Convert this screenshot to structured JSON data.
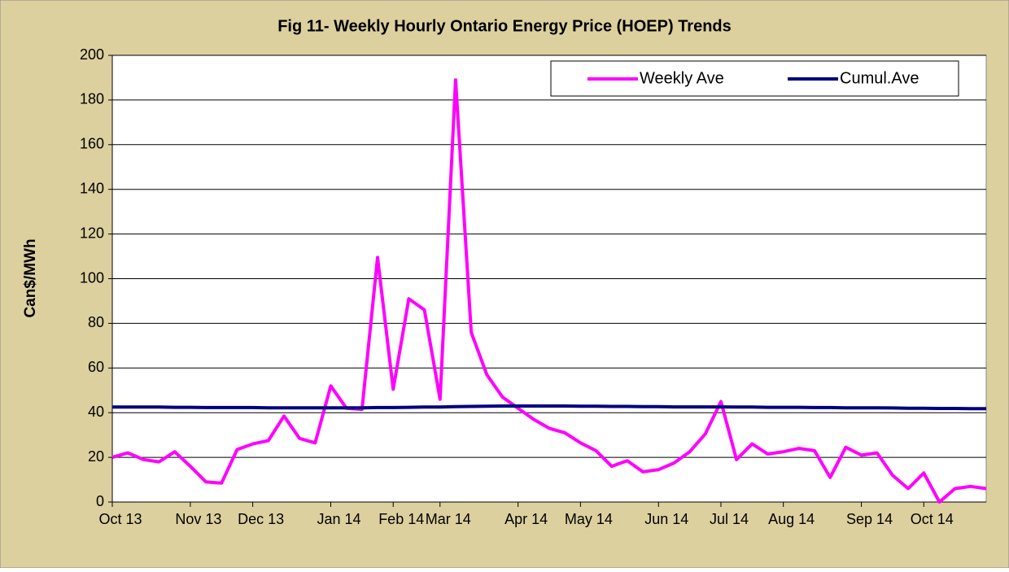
{
  "chart_data": {
    "type": "line",
    "title": "Fig 11- Weekly Hourly Ontario Energy Price (HOEP) Trends",
    "y_label": "Can$/MWh",
    "categories": [
      "Oct 13",
      null,
      null,
      null,
      null,
      "Nov 13",
      null,
      null,
      null,
      "Dec 13",
      null,
      null,
      null,
      null,
      "Jan 14",
      null,
      null,
      null,
      "Feb 14",
      null,
      null,
      "Mar 14",
      null,
      null,
      null,
      null,
      "Apr 14",
      null,
      null,
      null,
      "May 14",
      null,
      null,
      null,
      null,
      "Jun 14",
      null,
      null,
      null,
      "Jul 14",
      null,
      null,
      null,
      "Aug 14",
      null,
      null,
      null,
      null,
      "Sep 14",
      null,
      null,
      null,
      "Oct 14",
      null,
      null,
      null,
      null
    ],
    "series": [
      {
        "name": "Weekly Ave",
        "color": "#ff00ff",
        "values": [
          20,
          22,
          19,
          18,
          22.5,
          16,
          9,
          8.5,
          23.5,
          26,
          27.5,
          38.5,
          28.5,
          26.5,
          52,
          42,
          41.5,
          109.5,
          50.5,
          91,
          86,
          46,
          189,
          76,
          57,
          47,
          42,
          37,
          33,
          31,
          26.5,
          23,
          16,
          18.5,
          13.5,
          14.5,
          17.5,
          22.5,
          30.5,
          45,
          19,
          26,
          21.5,
          22.5,
          24,
          23,
          11,
          24.5,
          21,
          22,
          12,
          6,
          13,
          0,
          6,
          7,
          6
        ]
      },
      {
        "name": "Cumul.Ave",
        "color": "#000080",
        "values": [
          42.5,
          42.5,
          42.5,
          42.5,
          42.4,
          42.4,
          42.3,
          42.3,
          42.3,
          42.3,
          42.2,
          42.2,
          42.2,
          42.2,
          42.2,
          42.2,
          42.2,
          42.3,
          42.3,
          42.4,
          42.5,
          42.5,
          42.7,
          42.8,
          42.9,
          43,
          43,
          43,
          43,
          43,
          42.9,
          42.9,
          42.8,
          42.8,
          42.7,
          42.7,
          42.6,
          42.6,
          42.6,
          42.6,
          42.5,
          42.5,
          42.4,
          42.4,
          42.4,
          42.3,
          42.3,
          42.2,
          42.2,
          42.2,
          42.1,
          42,
          42,
          41.9,
          41.9,
          41.8,
          41.8
        ]
      }
    ],
    "ylim": [
      0,
      200
    ],
    "yticks": [
      0,
      20,
      40,
      60,
      80,
      100,
      120,
      140,
      160,
      180,
      200
    ],
    "grid": true,
    "legend": "top-right"
  }
}
